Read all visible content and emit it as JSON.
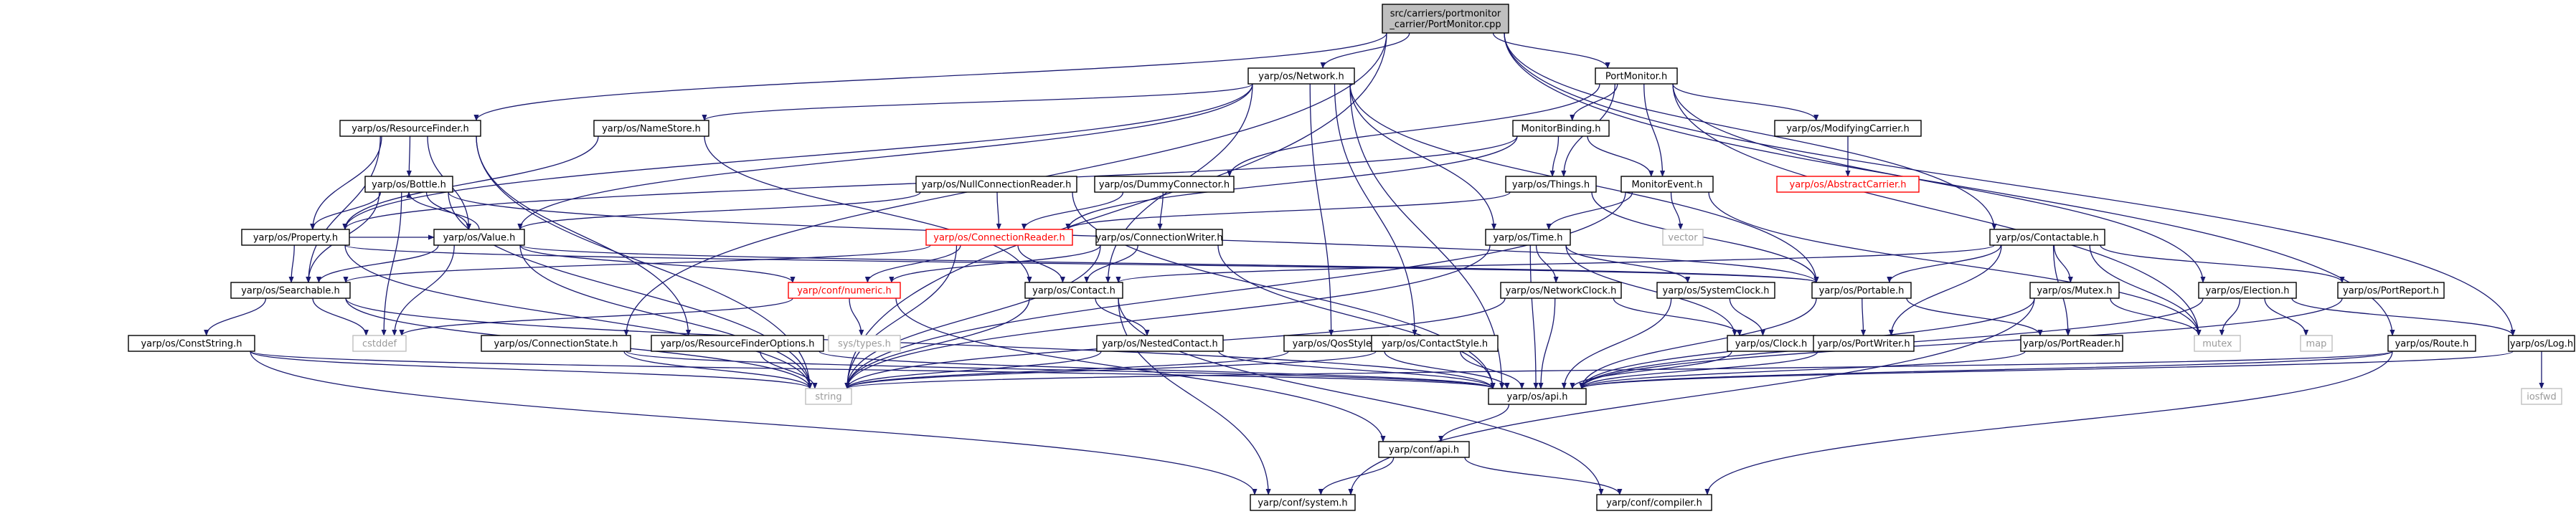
{
  "colors": {
    "edge": "#191970",
    "normal_fill": "#ffffff",
    "normal_stroke": "#000000",
    "root_fill": "#bfbfbf",
    "root_stroke": "#000000",
    "missing_stroke": "#bfbfbf",
    "missing_text": "#9a9a9a",
    "error_stroke": "#ff0000",
    "error_text": "#ff0000"
  },
  "nodes": [
    {
      "id": "root",
      "lines": [
        "src/carriers/portmonitor",
        "_carrier/PortMonitor.cpp"
      ],
      "kind": "root"
    },
    {
      "id": "network",
      "lines": [
        "yarp/os/Network.h"
      ],
      "kind": "normal"
    },
    {
      "id": "portmonitor",
      "lines": [
        "PortMonitor.h"
      ],
      "kind": "normal"
    },
    {
      "id": "resourcefinder",
      "lines": [
        "yarp/os/ResourceFinder.h"
      ],
      "kind": "normal"
    },
    {
      "id": "namestore",
      "lines": [
        "yarp/os/NameStore.h"
      ],
      "kind": "normal"
    },
    {
      "id": "monitorbinding",
      "lines": [
        "MonitorBinding.h"
      ],
      "kind": "normal"
    },
    {
      "id": "modifyingcarrier",
      "lines": [
        "yarp/os/ModifyingCarrier.h"
      ],
      "kind": "normal"
    },
    {
      "id": "abstractcarrier",
      "lines": [
        "yarp/os/AbstractCarrier.h"
      ],
      "kind": "error"
    },
    {
      "id": "bottle",
      "lines": [
        "yarp/os/Bottle.h"
      ],
      "kind": "normal"
    },
    {
      "id": "nullconnreader",
      "lines": [
        "yarp/os/NullConnectionReader.h"
      ],
      "kind": "normal"
    },
    {
      "id": "dummyconnector",
      "lines": [
        "yarp/os/DummyConnector.h"
      ],
      "kind": "normal"
    },
    {
      "id": "things",
      "lines": [
        "yarp/os/Things.h"
      ],
      "kind": "normal"
    },
    {
      "id": "monitorevent",
      "lines": [
        "MonitorEvent.h"
      ],
      "kind": "normal"
    },
    {
      "id": "vector",
      "lines": [
        "vector"
      ],
      "kind": "missing"
    },
    {
      "id": "property",
      "lines": [
        "yarp/os/Property.h"
      ],
      "kind": "normal"
    },
    {
      "id": "value",
      "lines": [
        "yarp/os/Value.h"
      ],
      "kind": "normal"
    },
    {
      "id": "connreader",
      "lines": [
        "yarp/os/ConnectionReader.h"
      ],
      "kind": "error"
    },
    {
      "id": "connwriter",
      "lines": [
        "yarp/os/ConnectionWriter.h"
      ],
      "kind": "normal"
    },
    {
      "id": "time",
      "lines": [
        "yarp/os/Time.h"
      ],
      "kind": "normal"
    },
    {
      "id": "contactable",
      "lines": [
        "yarp/os/Contactable.h"
      ],
      "kind": "normal"
    },
    {
      "id": "searchable",
      "lines": [
        "yarp/os/Searchable.h"
      ],
      "kind": "normal"
    },
    {
      "id": "numeric",
      "lines": [
        "yarp/conf/numeric.h"
      ],
      "kind": "error"
    },
    {
      "id": "contact",
      "lines": [
        "yarp/os/Contact.h"
      ],
      "kind": "normal"
    },
    {
      "id": "networkclock",
      "lines": [
        "yarp/os/NetworkClock.h"
      ],
      "kind": "normal"
    },
    {
      "id": "systemclock",
      "lines": [
        "yarp/os/SystemClock.h"
      ],
      "kind": "normal"
    },
    {
      "id": "portable",
      "lines": [
        "yarp/os/Portable.h"
      ],
      "kind": "normal"
    },
    {
      "id": "mutex",
      "lines": [
        "yarp/os/Mutex.h"
      ],
      "kind": "normal"
    },
    {
      "id": "election",
      "lines": [
        "yarp/os/Election.h"
      ],
      "kind": "normal"
    },
    {
      "id": "portreport",
      "lines": [
        "yarp/os/PortReport.h"
      ],
      "kind": "normal"
    },
    {
      "id": "conststring",
      "lines": [
        "yarp/os/ConstString.h"
      ],
      "kind": "normal"
    },
    {
      "id": "cstddef",
      "lines": [
        "cstddef"
      ],
      "kind": "missing"
    },
    {
      "id": "connstate",
      "lines": [
        "yarp/os/ConnectionState.h"
      ],
      "kind": "normal"
    },
    {
      "id": "rfoptions",
      "lines": [
        "yarp/os/ResourceFinderOptions.h"
      ],
      "kind": "normal"
    },
    {
      "id": "systypes",
      "lines": [
        "sys/types.h"
      ],
      "kind": "missing"
    },
    {
      "id": "nestedcontact",
      "lines": [
        "yarp/os/NestedContact.h"
      ],
      "kind": "normal"
    },
    {
      "id": "qosstyle",
      "lines": [
        "yarp/os/QosStyle.h"
      ],
      "kind": "normal"
    },
    {
      "id": "contactstyle",
      "lines": [
        "yarp/os/ContactStyle.h"
      ],
      "kind": "normal"
    },
    {
      "id": "clock",
      "lines": [
        "yarp/os/Clock.h"
      ],
      "kind": "normal"
    },
    {
      "id": "portwriter",
      "lines": [
        "yarp/os/PortWriter.h"
      ],
      "kind": "normal"
    },
    {
      "id": "portreader",
      "lines": [
        "yarp/os/PortReader.h"
      ],
      "kind": "normal"
    },
    {
      "id": "mutexstd",
      "lines": [
        "mutex"
      ],
      "kind": "missing"
    },
    {
      "id": "map",
      "lines": [
        "map"
      ],
      "kind": "missing"
    },
    {
      "id": "route",
      "lines": [
        "yarp/os/Route.h"
      ],
      "kind": "normal"
    },
    {
      "id": "log",
      "lines": [
        "yarp/os/Log.h"
      ],
      "kind": "normal"
    },
    {
      "id": "string",
      "lines": [
        "string"
      ],
      "kind": "missing"
    },
    {
      "id": "api",
      "lines": [
        "yarp/os/api.h"
      ],
      "kind": "normal"
    },
    {
      "id": "iosfwd",
      "lines": [
        "iosfwd"
      ],
      "kind": "missing"
    },
    {
      "id": "confapi",
      "lines": [
        "yarp/conf/api.h"
      ],
      "kind": "normal"
    },
    {
      "id": "system",
      "lines": [
        "yarp/conf/system.h"
      ],
      "kind": "normal"
    },
    {
      "id": "compiler",
      "lines": [
        "yarp/conf/compiler.h"
      ],
      "kind": "normal"
    }
  ],
  "edges": [
    [
      "root",
      "network"
    ],
    [
      "root",
      "portmonitor"
    ],
    [
      "root",
      "resourcefinder"
    ],
    [
      "root",
      "contactable"
    ],
    [
      "root",
      "route"
    ],
    [
      "root",
      "log"
    ],
    [
      "root",
      "connstate"
    ],
    [
      "root",
      "string"
    ],
    [
      "network",
      "namestore"
    ],
    [
      "network",
      "value"
    ],
    [
      "network",
      "time"
    ],
    [
      "network",
      "contact"
    ],
    [
      "network",
      "portable"
    ],
    [
      "network",
      "qosstyle"
    ],
    [
      "network",
      "contactstyle"
    ],
    [
      "network",
      "property"
    ],
    [
      "network",
      "api"
    ],
    [
      "portmonitor",
      "monitorbinding"
    ],
    [
      "portmonitor",
      "modifyingcarrier"
    ],
    [
      "portmonitor",
      "things"
    ],
    [
      "portmonitor",
      "monitorevent"
    ],
    [
      "portmonitor",
      "dummyconnector"
    ],
    [
      "portmonitor",
      "election"
    ],
    [
      "portmonitor",
      "mutexstd"
    ],
    [
      "modifyingcarrier",
      "abstractcarrier"
    ],
    [
      "resourcefinder",
      "bottle"
    ],
    [
      "resourcefinder",
      "property"
    ],
    [
      "resourcefinder",
      "value"
    ],
    [
      "resourcefinder",
      "searchable"
    ],
    [
      "resourcefinder",
      "rfoptions"
    ],
    [
      "resourcefinder",
      "string"
    ],
    [
      "namestore",
      "property"
    ],
    [
      "namestore",
      "contact"
    ],
    [
      "monitorbinding",
      "property"
    ],
    [
      "monitorbinding",
      "things"
    ],
    [
      "monitorbinding",
      "monitorevent"
    ],
    [
      "monitorbinding",
      "connreader"
    ],
    [
      "bottle",
      "property"
    ],
    [
      "bottle",
      "value"
    ],
    [
      "bottle",
      "searchable"
    ],
    [
      "bottle",
      "portable"
    ],
    [
      "bottle",
      "string"
    ],
    [
      "bottle",
      "cstddef"
    ],
    [
      "nullconnreader",
      "connreader"
    ],
    [
      "nullconnreader",
      "value"
    ],
    [
      "nullconnreader",
      "api"
    ],
    [
      "dummyconnector",
      "connreader"
    ],
    [
      "dummyconnector",
      "connwriter"
    ],
    [
      "things",
      "connreader"
    ],
    [
      "things",
      "portable"
    ],
    [
      "monitorevent",
      "time"
    ],
    [
      "monitorevent",
      "vector"
    ],
    [
      "monitorevent",
      "mutexstd"
    ],
    [
      "monitorevent",
      "string"
    ],
    [
      "property",
      "searchable"
    ],
    [
      "property",
      "value"
    ],
    [
      "property",
      "string"
    ],
    [
      "property",
      "portable"
    ],
    [
      "value",
      "bottle"
    ],
    [
      "value",
      "searchable"
    ],
    [
      "value",
      "numeric"
    ],
    [
      "value",
      "portable"
    ],
    [
      "value",
      "string"
    ],
    [
      "value",
      "cstddef"
    ],
    [
      "connreader",
      "contact"
    ],
    [
      "connreader",
      "numeric"
    ],
    [
      "connreader",
      "searchable"
    ],
    [
      "connreader",
      "string"
    ],
    [
      "connwriter",
      "contact"
    ],
    [
      "connwriter",
      "string"
    ],
    [
      "connwriter",
      "api"
    ],
    [
      "connwriter",
      "numeric"
    ],
    [
      "time",
      "networkclock"
    ],
    [
      "time",
      "systemclock"
    ],
    [
      "time",
      "clock"
    ],
    [
      "time",
      "string"
    ],
    [
      "time",
      "api"
    ],
    [
      "contactable",
      "contact"
    ],
    [
      "contactable",
      "mutex"
    ],
    [
      "contactable",
      "portwriter"
    ],
    [
      "contactable",
      "portreader"
    ],
    [
      "contactable",
      "portreport"
    ],
    [
      "contactable",
      "mutexstd"
    ],
    [
      "contactable",
      "portable"
    ],
    [
      "searchable",
      "conststring"
    ],
    [
      "searchable",
      "cstddef"
    ],
    [
      "searchable",
      "string"
    ],
    [
      "searchable",
      "api"
    ],
    [
      "numeric",
      "systypes"
    ],
    [
      "numeric",
      "cstddef"
    ],
    [
      "numeric",
      "confapi"
    ],
    [
      "contact",
      "nestedcontact"
    ],
    [
      "contact",
      "string"
    ],
    [
      "contact",
      "compiler"
    ],
    [
      "contact",
      "system"
    ],
    [
      "networkclock",
      "clock"
    ],
    [
      "networkclock",
      "string"
    ],
    [
      "networkclock",
      "api"
    ],
    [
      "systemclock",
      "clock"
    ],
    [
      "systemclock",
      "api"
    ],
    [
      "portable",
      "portwriter"
    ],
    [
      "portable",
      "portreader"
    ],
    [
      "portable",
      "api"
    ],
    [
      "mutex",
      "mutexstd"
    ],
    [
      "mutex",
      "api"
    ],
    [
      "mutex",
      "system"
    ],
    [
      "election",
      "mutexstd"
    ],
    [
      "election",
      "map"
    ],
    [
      "election",
      "log"
    ],
    [
      "election",
      "api"
    ],
    [
      "portreport",
      "api"
    ],
    [
      "conststring",
      "string"
    ],
    [
      "conststring",
      "api"
    ],
    [
      "conststring",
      "system"
    ],
    [
      "connstate",
      "string"
    ],
    [
      "connstate",
      "api"
    ],
    [
      "rfoptions",
      "string"
    ],
    [
      "rfoptions",
      "api"
    ],
    [
      "nestedcontact",
      "string"
    ],
    [
      "nestedcontact",
      "api"
    ],
    [
      "qosstyle",
      "api"
    ],
    [
      "qosstyle",
      "string"
    ],
    [
      "contactstyle",
      "api"
    ],
    [
      "contactstyle",
      "string"
    ],
    [
      "clock",
      "api"
    ],
    [
      "portwriter",
      "api"
    ],
    [
      "portreader",
      "api"
    ],
    [
      "route",
      "api"
    ],
    [
      "route",
      "string"
    ],
    [
      "route",
      "compiler"
    ],
    [
      "log",
      "api"
    ],
    [
      "log",
      "iosfwd"
    ],
    [
      "api",
      "confapi"
    ],
    [
      "confapi",
      "system"
    ],
    [
      "confapi",
      "compiler"
    ]
  ]
}
